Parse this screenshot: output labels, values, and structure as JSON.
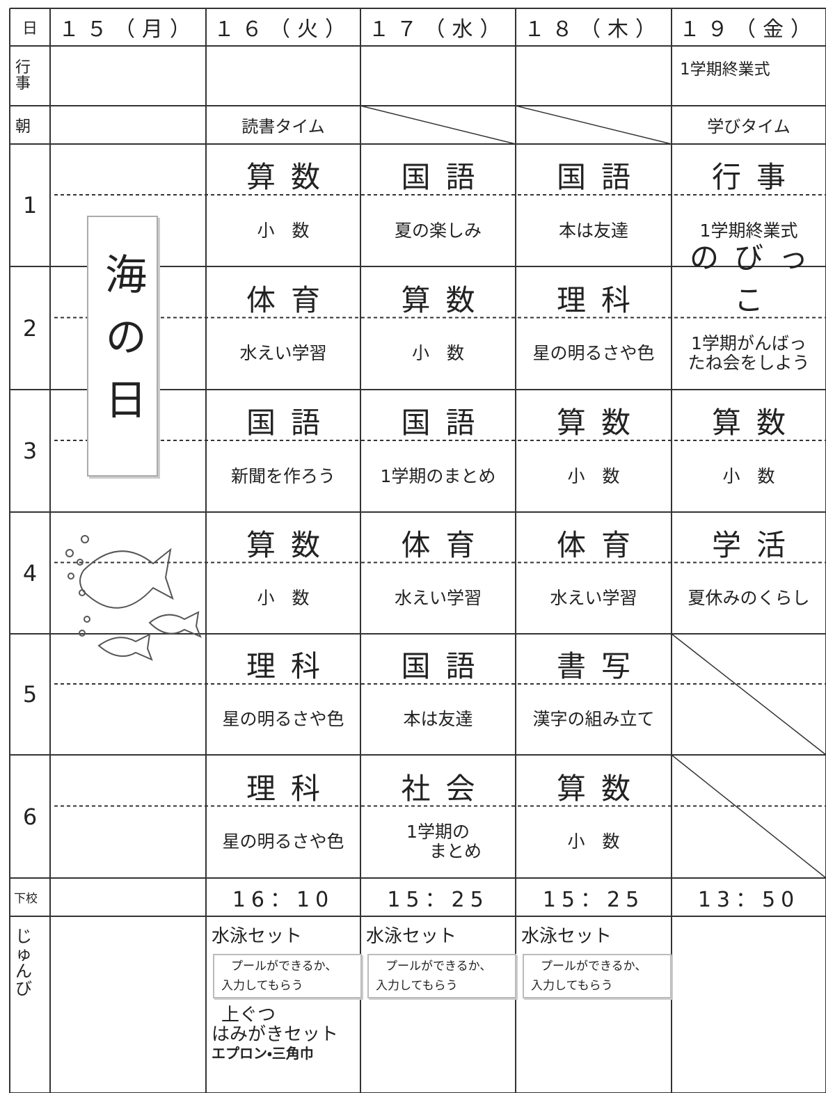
{
  "header": {
    "corner": "日",
    "days": [
      "１５（月）",
      "１６（火）",
      "１７（水）",
      "１８（木）",
      "１９（金）"
    ]
  },
  "events": {
    "label": [
      "行",
      "事"
    ],
    "cells": [
      null,
      null,
      null,
      null,
      "1学期終業式"
    ]
  },
  "morning": {
    "label": "朝",
    "cells": [
      null,
      "読書タイム",
      null,
      null,
      "学びタイム"
    ]
  },
  "holiday": "海の日",
  "periods": [
    {
      "label": "1",
      "cells": [
        null,
        {
          "subject": "算数",
          "topic": [
            "小　数"
          ]
        },
        {
          "subject": "国語",
          "topic": [
            "夏の楽しみ"
          ]
        },
        {
          "subject": "国語",
          "topic": [
            "本は友達"
          ]
        },
        {
          "subject": "行事",
          "topic": [
            "1学期終業式"
          ]
        }
      ]
    },
    {
      "label": "2",
      "cells": [
        null,
        {
          "subject": "体育",
          "topic": [
            "水えい学習"
          ]
        },
        {
          "subject": "算数",
          "topic": [
            "小　数"
          ]
        },
        {
          "subject": "理科",
          "topic": [
            "星の明るさや色"
          ]
        },
        {
          "subject": "のびっこ",
          "topic": [
            "1学期がんばっ",
            "たね会をしよう"
          ]
        }
      ]
    },
    {
      "label": "3",
      "cells": [
        null,
        {
          "subject": "国語",
          "topic": [
            "新聞を作ろう"
          ]
        },
        {
          "subject": "国語",
          "topic": [
            "1学期のまとめ"
          ]
        },
        {
          "subject": "算数",
          "topic": [
            "小　数"
          ]
        },
        {
          "subject": "算数",
          "topic": [
            "小　数"
          ]
        }
      ]
    },
    {
      "label": "4",
      "cells": [
        null,
        {
          "subject": "算数",
          "topic": [
            "小　数"
          ]
        },
        {
          "subject": "体育",
          "topic": [
            "水えい学習"
          ]
        },
        {
          "subject": "体育",
          "topic": [
            "水えい学習"
          ]
        },
        {
          "subject": "学活",
          "topic": [
            "夏休みのくらし"
          ]
        }
      ]
    },
    {
      "label": "5",
      "cells": [
        null,
        {
          "subject": "理科",
          "topic": [
            "星の明るさや色"
          ]
        },
        {
          "subject": "国語",
          "topic": [
            "本は友達"
          ]
        },
        {
          "subject": "書写",
          "topic": [
            "漢字の組み立て"
          ]
        },
        null
      ]
    },
    {
      "label": "6",
      "cells": [
        null,
        {
          "subject": "理科",
          "topic": [
            "星の明るさや色"
          ]
        },
        {
          "subject": "社会",
          "topic": [
            "1学期の",
            "　　まとめ"
          ]
        },
        {
          "subject": "算数",
          "topic": [
            "小　数"
          ]
        },
        null
      ]
    }
  ],
  "dismissal": {
    "label": "下校",
    "cells": [
      null,
      "16：10",
      "15：25",
      "15：25",
      "13：50"
    ]
  },
  "prep": {
    "label": [
      "じ",
      "ゅ",
      "ん",
      "び"
    ],
    "cells": [
      null,
      {
        "items": [
          "水泳セット"
        ],
        "note": [
          "プールができるか、",
          "入力してもらう"
        ],
        "extra": [
          "上ぐつ",
          "はみがきセット"
        ],
        "bold": "エプロン・三角巾"
      },
      {
        "items": [
          "水泳セット"
        ],
        "note": [
          "プールができるか、",
          "入力してもらう"
        ]
      },
      {
        "items": [
          "水泳セット"
        ],
        "note": [
          "プールができるか、",
          "入力してもらう"
        ]
      },
      null
    ]
  }
}
